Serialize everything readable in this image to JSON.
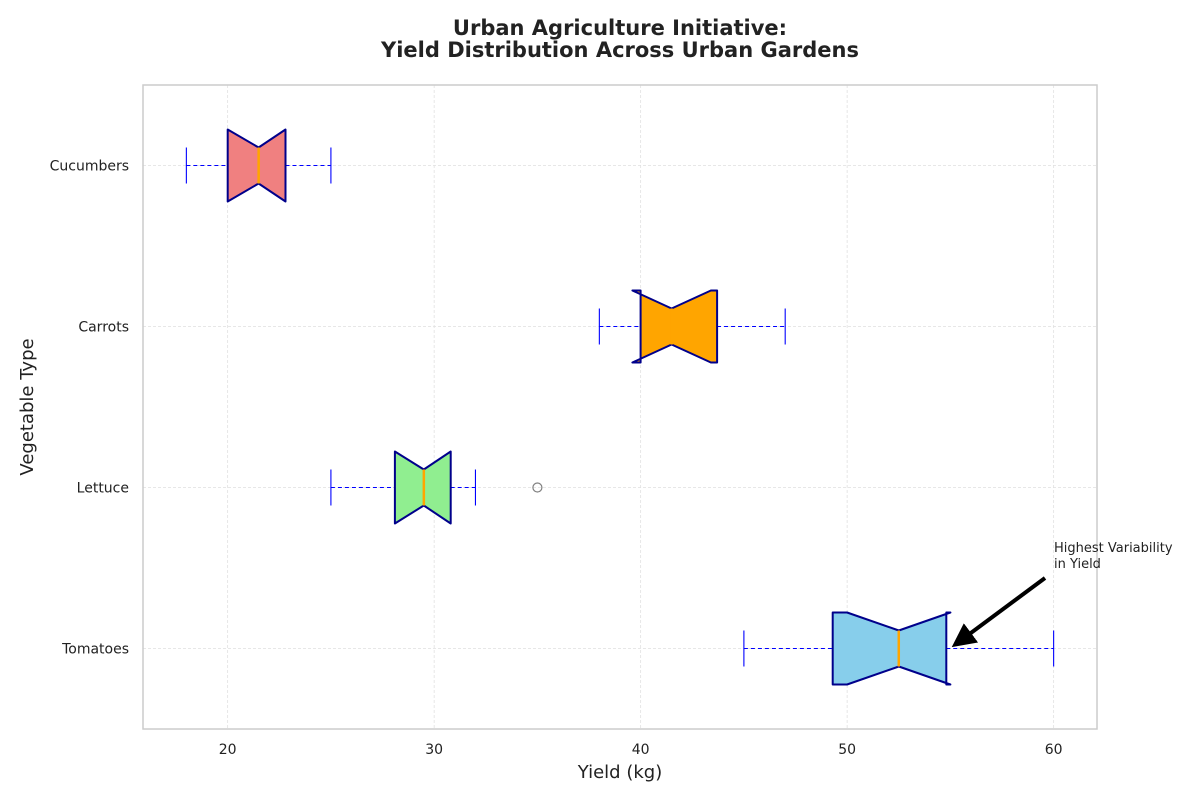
{
  "chart_data": {
    "type": "boxplot",
    "orientation": "horizontal",
    "title_line1": "Urban Agriculture Initiative:",
    "title_line2": "Yield Distribution Across Urban Gardens",
    "xlabel": "Yield (kg)",
    "ylabel": "Vegetable Type",
    "xlim": [
      15.9,
      62.1
    ],
    "xticks": [
      20,
      30,
      40,
      50,
      60
    ],
    "xtick_labels": [
      "20",
      "30",
      "40",
      "50",
      "60"
    ],
    "grid": true,
    "categories": [
      "Tomatoes",
      "Lettuce",
      "Carrots",
      "Cucumbers"
    ],
    "boxes": [
      {
        "category": "Tomatoes",
        "whislo": 45,
        "q1": 49.3,
        "notch_lo": 50.0,
        "med": 52.5,
        "notch_hi": 55.0,
        "q3": 54.8,
        "whishi": 60,
        "fliers": [],
        "color": "#87CEEB"
      },
      {
        "category": "Lettuce",
        "whislo": 25,
        "q1": 28.1,
        "notch_lo": 28.1,
        "med": 29.5,
        "notch_hi": 30.8,
        "q3": 30.8,
        "whishi": 32,
        "fliers": [
          35
        ],
        "color": "#90EE90"
      },
      {
        "category": "Carrots",
        "whislo": 38,
        "q1": 40.0,
        "notch_lo": 39.6,
        "med": 41.5,
        "notch_hi": 43.4,
        "q3": 43.7,
        "whishi": 47,
        "fliers": [],
        "color": "#FFA500"
      },
      {
        "category": "Cucumbers",
        "whislo": 18,
        "q1": 20.0,
        "notch_lo": 20.0,
        "med": 21.5,
        "notch_hi": 22.8,
        "q3": 22.8,
        "whishi": 25,
        "fliers": [],
        "color": "#F08080"
      }
    ],
    "colors": {
      "box_edge": "#00008B",
      "median": "#FFA500",
      "whisker": "#0000FF",
      "flier": "#808080",
      "grid": "#e0e0e0",
      "frame": "#cccccc",
      "text": "#222222"
    },
    "annotation": {
      "text_line1": "Highest Variability",
      "text_line2": "in Yield",
      "category": "Tomatoes",
      "point_x": 55.5
    }
  }
}
